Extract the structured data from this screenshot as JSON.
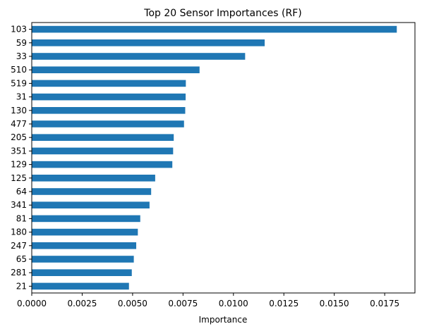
{
  "chart_data": {
    "type": "bar",
    "orientation": "horizontal",
    "title": "Top 20 Sensor Importances (RF)",
    "xlabel": "Importance",
    "ylabel": "",
    "categories": [
      "103",
      "59",
      "33",
      "510",
      "519",
      "31",
      "130",
      "477",
      "205",
      "351",
      "129",
      "125",
      "64",
      "341",
      "81",
      "180",
      "247",
      "65",
      "281",
      "21"
    ],
    "values": [
      0.0181,
      0.01155,
      0.01058,
      0.00832,
      0.00764,
      0.00763,
      0.00761,
      0.00755,
      0.00704,
      0.00701,
      0.00697,
      0.00612,
      0.00592,
      0.00584,
      0.00538,
      0.00526,
      0.00518,
      0.00506,
      0.00496,
      0.00482
    ],
    "xlim": [
      0,
      0.019
    ],
    "xticks": [
      0,
      0.0025,
      0.005,
      0.0075,
      0.01,
      0.0125,
      0.015,
      0.0175
    ],
    "xtick_labels": [
      "0.0000",
      "0.0025",
      "0.0050",
      "0.0075",
      "0.0100",
      "0.0125",
      "0.0150",
      "0.0175"
    ],
    "bar_color": "#1f77b4",
    "grid": false,
    "legend": "none"
  }
}
